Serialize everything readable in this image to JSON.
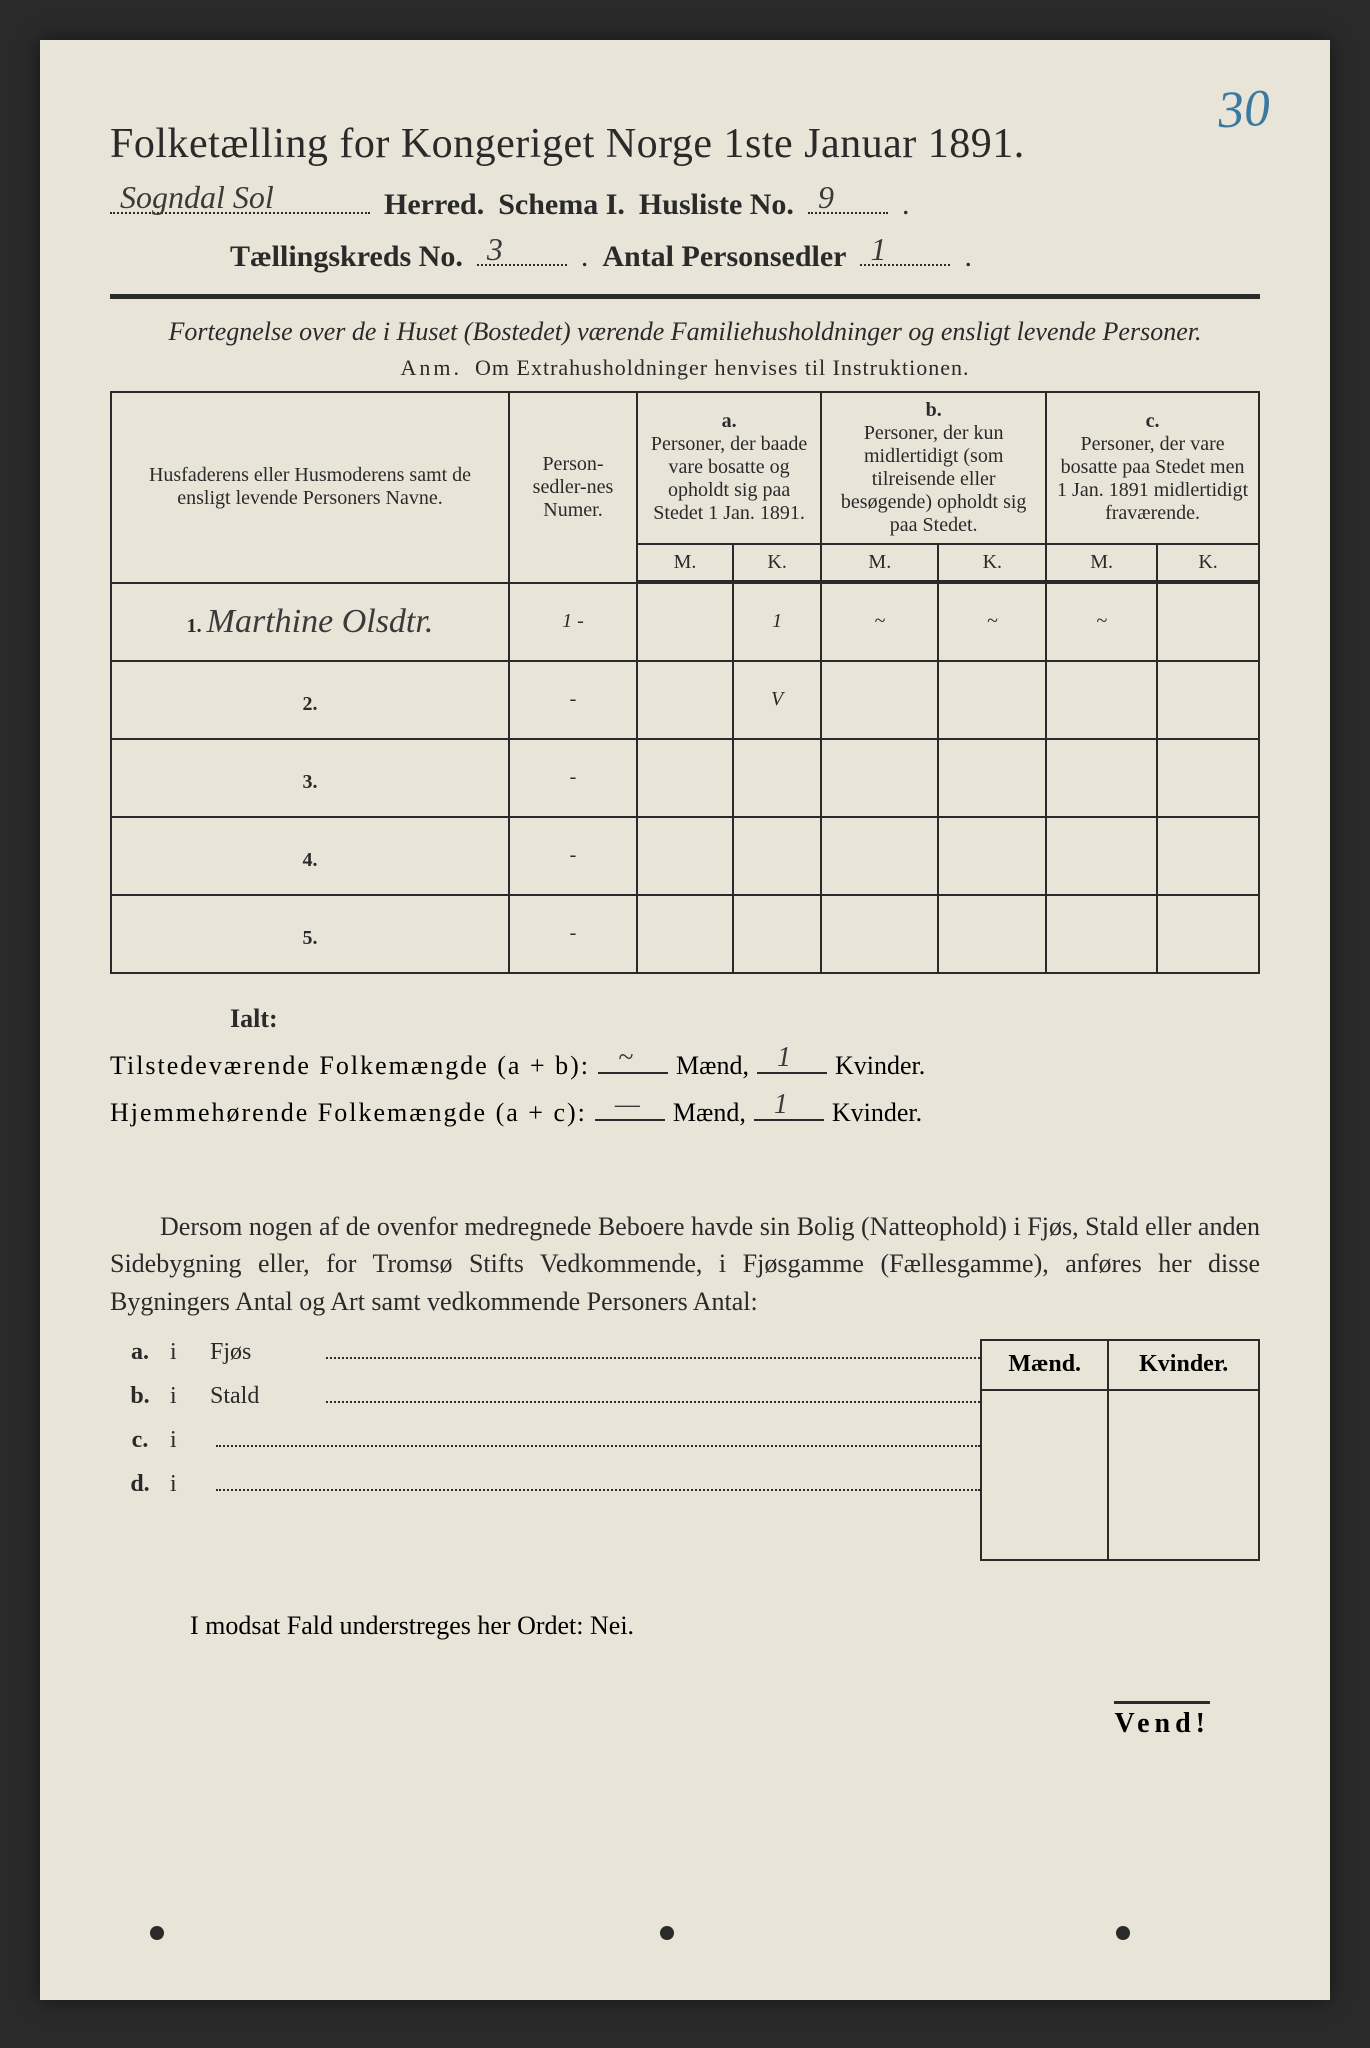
{
  "page_number_handwritten": "30",
  "title": "Folketælling for Kongeriget Norge 1ste Januar 1891.",
  "header": {
    "herred_hand": "Sogndal Sol",
    "herred_label": "Herred.",
    "schema_label": "Schema I.",
    "husliste_label": "Husliste No.",
    "husliste_hand": "9",
    "kreds_label": "Tællingskreds No.",
    "kreds_hand": "3",
    "antal_label": "Antal Personsedler",
    "antal_hand": "1"
  },
  "subtitle_italic": "Fortegnelse over de i Huset (Bostedet) værende Familiehusholdninger og ensligt levende Personer.",
  "anm_line_prefix": "Anm.",
  "anm_line": "Om Extrahusholdninger henvises til Instruktionen.",
  "columns": {
    "names": "Husfaderens eller Husmoderens samt de ensligt levende Personers Navne.",
    "numer": "Person-sedler-nes Numer.",
    "a_top": "a.",
    "a": "Personer, der baade vare bosatte og opholdt sig paa Stedet 1 Jan. 1891.",
    "b_top": "b.",
    "b": "Personer, der kun midlertidigt (som tilreisende eller besøgende) opholdt sig paa Stedet.",
    "c_top": "c.",
    "c": "Personer, der vare bosatte paa Stedet men 1 Jan. 1891 midlertidigt fraværende.",
    "m": "M.",
    "k": "K."
  },
  "rows": [
    {
      "n": "1.",
      "name": "Marthine Olsdtr.",
      "num": "1 -",
      "a_m": "",
      "a_k": "1",
      "b_m": "~",
      "b_k": "~",
      "c_m": "~",
      "c_k": ""
    },
    {
      "n": "2.",
      "name": "",
      "num": "-",
      "a_m": "",
      "a_k": "V",
      "b_m": "",
      "b_k": "",
      "c_m": "",
      "c_k": ""
    },
    {
      "n": "3.",
      "name": "",
      "num": "-",
      "a_m": "",
      "a_k": "",
      "b_m": "",
      "b_k": "",
      "c_m": "",
      "c_k": ""
    },
    {
      "n": "4.",
      "name": "",
      "num": "-",
      "a_m": "",
      "a_k": "",
      "b_m": "",
      "b_k": "",
      "c_m": "",
      "c_k": ""
    },
    {
      "n": "5.",
      "name": "",
      "num": "-",
      "a_m": "",
      "a_k": "",
      "b_m": "",
      "b_k": "",
      "c_m": "",
      "c_k": ""
    }
  ],
  "ialt": "Ialt:",
  "sums": {
    "line1_label": "Tilstedeværende Folkemængde (a + b):",
    "line2_label": "Hjemmehørende Folkemængde (a + c):",
    "maend": "Mænd,",
    "kvinder": "Kvinder.",
    "l1_m": "~",
    "l1_k": "1",
    "l2_m": "—",
    "l2_k": "1"
  },
  "dersom": "Dersom nogen af de ovenfor medregnede Beboere havde sin Bolig (Natteophold) i Fjøs, Stald eller anden Sidebygning eller, for Tromsø Stifts Vedkommende, i Fjøsgamme (Fællesgamme), anføres her disse Bygningers Antal og Art samt vedkommende Personers Antal:",
  "abcd": {
    "a": {
      "lbl": "a.",
      "i": "i",
      "word": "Fjøs"
    },
    "b": {
      "lbl": "b.",
      "i": "i",
      "word": "Stald"
    },
    "c": {
      "lbl": "c.",
      "i": "i",
      "word": ""
    },
    "d": {
      "lbl": "d.",
      "i": "i",
      "word": ""
    }
  },
  "mk": {
    "m": "Mænd.",
    "k": "Kvinder."
  },
  "nei_line": "I modsat Fald understreges her Ordet: Nei.",
  "nei_word": "Nei",
  "vend": "Vend!"
}
